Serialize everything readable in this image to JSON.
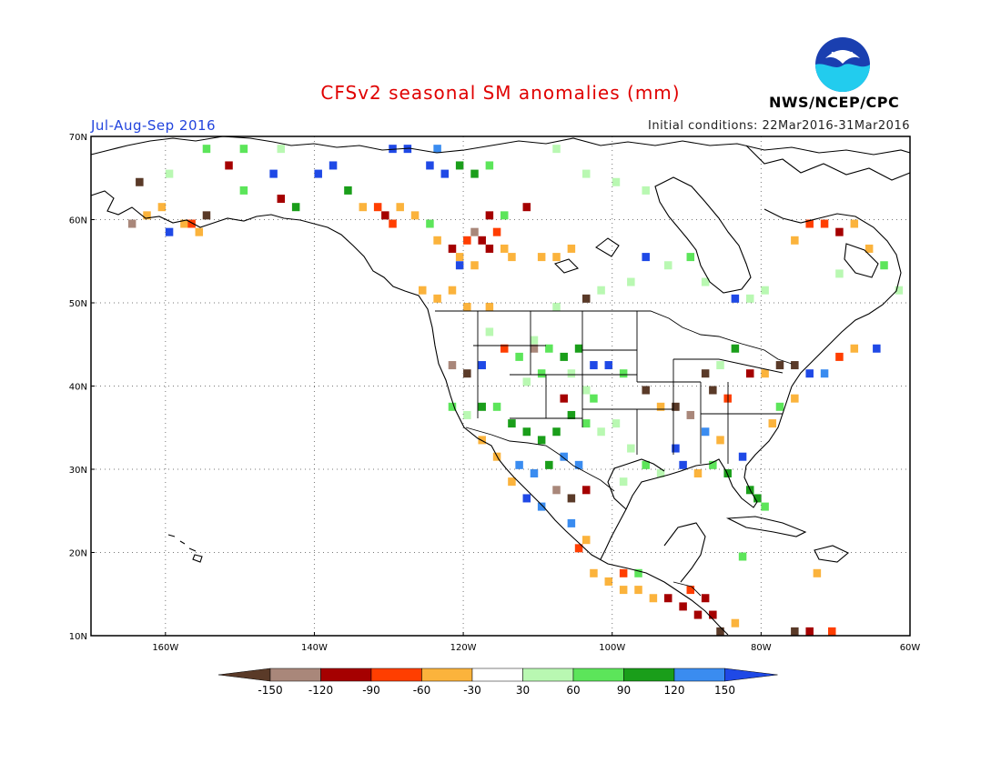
{
  "title": "CFSv2 seasonal SM anomalies (mm)",
  "period": "Jul-Aug-Sep 2016",
  "initial_conditions": "Initial conditions: 22Mar2016-31Mar2016",
  "agency": "NWS/NCEP/CPC",
  "logo_text": "NOAA",
  "lat_labels": [
    "70N",
    "60N",
    "50N",
    "40N",
    "30N",
    "20N",
    "10N"
  ],
  "lon_labels": [
    "160W",
    "140W",
    "120W",
    "100W",
    "80W",
    "60W"
  ],
  "colorbar": {
    "ticks": [
      "-150",
      "-120",
      "-90",
      "-60",
      "-30",
      "30",
      "60",
      "90",
      "120",
      "150"
    ],
    "colors": [
      "#5a3a28",
      "#a9877a",
      "#a50000",
      "#ff3e00",
      "#fbb33c",
      "#ffffff",
      "#b9f8b2",
      "#5ce55a",
      "#1a9e1a",
      "#3a8cf0",
      "#1f49e6"
    ]
  },
  "anomaly_cells": [
    {
      "lon": -163,
      "lat": 61,
      "c": "#fbb33c"
    },
    {
      "lon": -161,
      "lat": 62,
      "c": "#fbb33c"
    },
    {
      "lon": -158,
      "lat": 60,
      "c": "#fbb33c"
    },
    {
      "lon": -165,
      "lat": 60,
      "c": "#a9877a"
    },
    {
      "lon": -157,
      "lat": 60,
      "c": "#ff3e00"
    },
    {
      "lon": -156,
      "lat": 59,
      "c": "#fbb33c"
    },
    {
      "lon": -160,
      "lat": 59,
      "c": "#1f49e6"
    },
    {
      "lon": -155,
      "lat": 61,
      "c": "#5a3a28"
    },
    {
      "lon": -164,
      "lat": 65,
      "c": "#5a3a28"
    },
    {
      "lon": -160,
      "lat": 66,
      "c": "#b9f8b2"
    },
    {
      "lon": -152,
      "lat": 67,
      "c": "#a50000"
    },
    {
      "lon": -146,
      "lat": 66,
      "c": "#1f49e6"
    },
    {
      "lon": -150,
      "lat": 64,
      "c": "#5ce55a"
    },
    {
      "lon": -145,
      "lat": 63,
      "c": "#a50000"
    },
    {
      "lon": -143,
      "lat": 62,
      "c": "#1a9e1a"
    },
    {
      "lon": -140,
      "lat": 66,
      "c": "#1f49e6"
    },
    {
      "lon": -138,
      "lat": 67,
      "c": "#1f49e6"
    },
    {
      "lon": -136,
      "lat": 64,
      "c": "#1a9e1a"
    },
    {
      "lon": -134,
      "lat": 62,
      "c": "#fbb33c"
    },
    {
      "lon": -132,
      "lat": 62,
      "c": "#ff3e00"
    },
    {
      "lon": -131,
      "lat": 61,
      "c": "#a50000"
    },
    {
      "lon": -130,
      "lat": 60,
      "c": "#ff3e00"
    },
    {
      "lon": -129,
      "lat": 62,
      "c": "#fbb33c"
    },
    {
      "lon": -127,
      "lat": 61,
      "c": "#fbb33c"
    },
    {
      "lon": -125,
      "lat": 60,
      "c": "#5ce55a"
    },
    {
      "lon": -124,
      "lat": 58,
      "c": "#fbb33c"
    },
    {
      "lon": -122,
      "lat": 57,
      "c": "#a50000"
    },
    {
      "lon": -121,
      "lat": 56,
      "c": "#fbb33c"
    },
    {
      "lon": -120,
      "lat": 58,
      "c": "#ff3e00"
    },
    {
      "lon": -119,
      "lat": 59,
      "c": "#a9877a"
    },
    {
      "lon": -118,
      "lat": 58,
      "c": "#a50000"
    },
    {
      "lon": -117,
      "lat": 57,
      "c": "#a50000"
    },
    {
      "lon": -116,
      "lat": 59,
      "c": "#ff3e00"
    },
    {
      "lon": -115,
      "lat": 57,
      "c": "#fbb33c"
    },
    {
      "lon": -114,
      "lat": 56,
      "c": "#fbb33c"
    },
    {
      "lon": -119,
      "lat": 55,
      "c": "#fbb33c"
    },
    {
      "lon": -121,
      "lat": 55,
      "c": "#1f49e6"
    },
    {
      "lon": -117,
      "lat": 61,
      "c": "#a50000"
    },
    {
      "lon": -115,
      "lat": 61,
      "c": "#5ce55a"
    },
    {
      "lon": -112,
      "lat": 62,
      "c": "#a50000"
    },
    {
      "lon": -110,
      "lat": 56,
      "c": "#fbb33c"
    },
    {
      "lon": -108,
      "lat": 56,
      "c": "#fbb33c"
    },
    {
      "lon": -106,
      "lat": 57,
      "c": "#fbb33c"
    },
    {
      "lon": -126,
      "lat": 52,
      "c": "#fbb33c"
    },
    {
      "lon": -124,
      "lat": 51,
      "c": "#fbb33c"
    },
    {
      "lon": -122,
      "lat": 52,
      "c": "#fbb33c"
    },
    {
      "lon": -120,
      "lat": 50,
      "c": "#fbb33c"
    },
    {
      "lon": -117,
      "lat": 50,
      "c": "#fbb33c"
    },
    {
      "lon": -125,
      "lat": 67,
      "c": "#1f49e6"
    },
    {
      "lon": -123,
      "lat": 66,
      "c": "#1f49e6"
    },
    {
      "lon": -121,
      "lat": 67,
      "c": "#1a9e1a"
    },
    {
      "lon": -119,
      "lat": 66,
      "c": "#1a9e1a"
    },
    {
      "lon": -117,
      "lat": 67,
      "c": "#5ce55a"
    },
    {
      "lon": -130,
      "lat": 69,
      "c": "#1f49e6"
    },
    {
      "lon": -128,
      "lat": 69,
      "c": "#1f49e6"
    },
    {
      "lon": -124,
      "lat": 69,
      "c": "#3a8cf0"
    },
    {
      "lon": -155,
      "lat": 69,
      "c": "#5ce55a"
    },
    {
      "lon": -150,
      "lat": 69,
      "c": "#5ce55a"
    },
    {
      "lon": -145,
      "lat": 69,
      "c": "#b9f8b2"
    },
    {
      "lon": -108,
      "lat": 69,
      "c": "#b9f8b2"
    },
    {
      "lon": -104,
      "lat": 66,
      "c": "#b9f8b2"
    },
    {
      "lon": -100,
      "lat": 65,
      "c": "#b9f8b2"
    },
    {
      "lon": -96,
      "lat": 64,
      "c": "#b9f8b2"
    },
    {
      "lon": -96,
      "lat": 56,
      "c": "#1f49e6"
    },
    {
      "lon": -93,
      "lat": 55,
      "c": "#b9f8b2"
    },
    {
      "lon": -90,
      "lat": 56,
      "c": "#5ce55a"
    },
    {
      "lon": -88,
      "lat": 53,
      "c": "#b9f8b2"
    },
    {
      "lon": -84,
      "lat": 51,
      "c": "#1f49e6"
    },
    {
      "lon": -82,
      "lat": 51,
      "c": "#b9f8b2"
    },
    {
      "lon": -80,
      "lat": 52,
      "c": "#b9f8b2"
    },
    {
      "lon": -102,
      "lat": 52,
      "c": "#b9f8b2"
    },
    {
      "lon": -98,
      "lat": 53,
      "c": "#b9f8b2"
    },
    {
      "lon": -104,
      "lat": 51,
      "c": "#5a3a28"
    },
    {
      "lon": -108,
      "lat": 50,
      "c": "#b9f8b2"
    },
    {
      "lon": -74,
      "lat": 60,
      "c": "#ff3e00"
    },
    {
      "lon": -72,
      "lat": 60,
      "c": "#ff3e00"
    },
    {
      "lon": -70,
      "lat": 59,
      "c": "#a50000"
    },
    {
      "lon": -68,
      "lat": 60,
      "c": "#fbb33c"
    },
    {
      "lon": -66,
      "lat": 57,
      "c": "#fbb33c"
    },
    {
      "lon": -64,
      "lat": 55,
      "c": "#5ce55a"
    },
    {
      "lon": -70,
      "lat": 54,
      "c": "#b9f8b2"
    },
    {
      "lon": -62,
      "lat": 52,
      "c": "#b9f8b2"
    },
    {
      "lon": -76,
      "lat": 58,
      "c": "#fbb33c"
    },
    {
      "lon": -117,
      "lat": 47,
      "c": "#b9f8b2"
    },
    {
      "lon": -115,
      "lat": 45,
      "c": "#ff3e00"
    },
    {
      "lon": -113,
      "lat": 44,
      "c": "#5ce55a"
    },
    {
      "lon": -111,
      "lat": 46,
      "c": "#b9f8b2"
    },
    {
      "lon": -109,
      "lat": 45,
      "c": "#5ce55a"
    },
    {
      "lon": -107,
      "lat": 44,
      "c": "#1a9e1a"
    },
    {
      "lon": -105,
      "lat": 45,
      "c": "#1a9e1a"
    },
    {
      "lon": -103,
      "lat": 43,
      "c": "#1f49e6"
    },
    {
      "lon": -101,
      "lat": 43,
      "c": "#1f49e6"
    },
    {
      "lon": -99,
      "lat": 42,
      "c": "#5ce55a"
    },
    {
      "lon": -106,
      "lat": 42,
      "c": "#b9f8b2"
    },
    {
      "lon": -110,
      "lat": 42,
      "c": "#5ce55a"
    },
    {
      "lon": -112,
      "lat": 41,
      "c": "#b9f8b2"
    },
    {
      "lon": -120,
      "lat": 42,
      "c": "#5a3a28"
    },
    {
      "lon": -122,
      "lat": 43,
      "c": "#a9877a"
    },
    {
      "lon": -118,
      "lat": 43,
      "c": "#1f49e6"
    },
    {
      "lon": -111,
      "lat": 45,
      "c": "#a9877a"
    },
    {
      "lon": -122,
      "lat": 38,
      "c": "#5ce55a"
    },
    {
      "lon": -120,
      "lat": 37,
      "c": "#b9f8b2"
    },
    {
      "lon": -118,
      "lat": 38,
      "c": "#1a9e1a"
    },
    {
      "lon": -116,
      "lat": 38,
      "c": "#5ce55a"
    },
    {
      "lon": -114,
      "lat": 36,
      "c": "#1a9e1a"
    },
    {
      "lon": -112,
      "lat": 35,
      "c": "#1a9e1a"
    },
    {
      "lon": -110,
      "lat": 34,
      "c": "#1a9e1a"
    },
    {
      "lon": -108,
      "lat": 35,
      "c": "#1a9e1a"
    },
    {
      "lon": -106,
      "lat": 37,
      "c": "#1a9e1a"
    },
    {
      "lon": -104,
      "lat": 36,
      "c": "#5ce55a"
    },
    {
      "lon": -107,
      "lat": 32,
      "c": "#3a8cf0"
    },
    {
      "lon": -105,
      "lat": 31,
      "c": "#3a8cf0"
    },
    {
      "lon": -109,
      "lat": 31,
      "c": "#1a9e1a"
    },
    {
      "lon": -111,
      "lat": 30,
      "c": "#3a8cf0"
    },
    {
      "lon": -113,
      "lat": 31,
      "c": "#3a8cf0"
    },
    {
      "lon": -108,
      "lat": 28,
      "c": "#a9877a"
    },
    {
      "lon": -106,
      "lat": 27,
      "c": "#5a3a28"
    },
    {
      "lon": -104,
      "lat": 28,
      "c": "#a50000"
    },
    {
      "lon": -106,
      "lat": 24,
      "c": "#3a8cf0"
    },
    {
      "lon": -104,
      "lat": 22,
      "c": "#fbb33c"
    },
    {
      "lon": -112,
      "lat": 27,
      "c": "#1f49e6"
    },
    {
      "lon": -110,
      "lat": 26,
      "c": "#3a8cf0"
    },
    {
      "lon": -118,
      "lat": 34,
      "c": "#fbb33c"
    },
    {
      "lon": -116,
      "lat": 32,
      "c": "#fbb33c"
    },
    {
      "lon": -114,
      "lat": 29,
      "c": "#fbb33c"
    },
    {
      "lon": -102,
      "lat": 35,
      "c": "#b9f8b2"
    },
    {
      "lon": -103,
      "lat": 39,
      "c": "#5ce55a"
    },
    {
      "lon": -107,
      "lat": 39,
      "c": "#a50000"
    },
    {
      "lon": -104,
      "lat": 40,
      "c": "#b9f8b2"
    },
    {
      "lon": -96,
      "lat": 40,
      "c": "#5a3a28"
    },
    {
      "lon": -94,
      "lat": 38,
      "c": "#fbb33c"
    },
    {
      "lon": -92,
      "lat": 38,
      "c": "#5a3a28"
    },
    {
      "lon": -90,
      "lat": 37,
      "c": "#a9877a"
    },
    {
      "lon": -88,
      "lat": 35,
      "c": "#3a8cf0"
    },
    {
      "lon": -86,
      "lat": 34,
      "c": "#fbb33c"
    },
    {
      "lon": -92,
      "lat": 33,
      "c": "#1f49e6"
    },
    {
      "lon": -91,
      "lat": 31,
      "c": "#1f49e6"
    },
    {
      "lon": -89,
      "lat": 30,
      "c": "#fbb33c"
    },
    {
      "lon": -87,
      "lat": 31,
      "c": "#5ce55a"
    },
    {
      "lon": -85,
      "lat": 30,
      "c": "#1a9e1a"
    },
    {
      "lon": -83,
      "lat": 32,
      "c": "#1f49e6"
    },
    {
      "lon": -82,
      "lat": 28,
      "c": "#1a9e1a"
    },
    {
      "lon": -81,
      "lat": 27,
      "c": "#1a9e1a"
    },
    {
      "lon": -80,
      "lat": 26,
      "c": "#5ce55a"
    },
    {
      "lon": -98,
      "lat": 33,
      "c": "#b9f8b2"
    },
    {
      "lon": -96,
      "lat": 31,
      "c": "#5ce55a"
    },
    {
      "lon": -94,
      "lat": 30,
      "c": "#b9f8b2"
    },
    {
      "lon": -99,
      "lat": 29,
      "c": "#b9f8b2"
    },
    {
      "lon": -100,
      "lat": 36,
      "c": "#b9f8b2"
    },
    {
      "lon": -88,
      "lat": 42,
      "c": "#5a3a28"
    },
    {
      "lon": -86,
      "lat": 43,
      "c": "#b9f8b2"
    },
    {
      "lon": -82,
      "lat": 42,
      "c": "#a50000"
    },
    {
      "lon": -80,
      "lat": 42,
      "c": "#fbb33c"
    },
    {
      "lon": -78,
      "lat": 43,
      "c": "#5a3a28"
    },
    {
      "lon": -76,
      "lat": 43,
      "c": "#5a3a28"
    },
    {
      "lon": -74,
      "lat": 42,
      "c": "#1f49e6"
    },
    {
      "lon": -72,
      "lat": 42,
      "c": "#3a8cf0"
    },
    {
      "lon": -70,
      "lat": 44,
      "c": "#ff3e00"
    },
    {
      "lon": -68,
      "lat": 45,
      "c": "#fbb33c"
    },
    {
      "lon": -65,
      "lat": 45,
      "c": "#1f49e6"
    },
    {
      "lon": -76,
      "lat": 39,
      "c": "#fbb33c"
    },
    {
      "lon": -78,
      "lat": 38,
      "c": "#5ce55a"
    },
    {
      "lon": -79,
      "lat": 36,
      "c": "#fbb33c"
    },
    {
      "lon": -84,
      "lat": 45,
      "c": "#1a9e1a"
    },
    {
      "lon": -87,
      "lat": 40,
      "c": "#5a3a28"
    },
    {
      "lon": -85,
      "lat": 39,
      "c": "#ff3e00"
    },
    {
      "lon": -105,
      "lat": 21,
      "c": "#ff3e00"
    },
    {
      "lon": -103,
      "lat": 18,
      "c": "#fbb33c"
    },
    {
      "lon": -101,
      "lat": 17,
      "c": "#fbb33c"
    },
    {
      "lon": -99,
      "lat": 16,
      "c": "#fbb33c"
    },
    {
      "lon": -97,
      "lat": 16,
      "c": "#fbb33c"
    },
    {
      "lon": -95,
      "lat": 15,
      "c": "#fbb33c"
    },
    {
      "lon": -93,
      "lat": 15,
      "c": "#a50000"
    },
    {
      "lon": -91,
      "lat": 14,
      "c": "#a50000"
    },
    {
      "lon": -89,
      "lat": 13,
      "c": "#a50000"
    },
    {
      "lon": -87,
      "lat": 13,
      "c": "#a50000"
    },
    {
      "lon": -86,
      "lat": 11,
      "c": "#5a3a28"
    },
    {
      "lon": -84,
      "lat": 12,
      "c": "#fbb33c"
    },
    {
      "lon": -88,
      "lat": 15,
      "c": "#a50000"
    },
    {
      "lon": -90,
      "lat": 16,
      "c": "#ff3e00"
    },
    {
      "lon": -99,
      "lat": 18,
      "c": "#ff3e00"
    },
    {
      "lon": -97,
      "lat": 18,
      "c": "#5ce55a"
    },
    {
      "lon": -83,
      "lat": 20,
      "c": "#5ce55a"
    },
    {
      "lon": -73,
      "lat": 18,
      "c": "#fbb33c"
    },
    {
      "lon": -71,
      "lat": 11,
      "c": "#ff3e00"
    },
    {
      "lon": -74,
      "lat": 11,
      "c": "#a50000"
    },
    {
      "lon": -76,
      "lat": 11,
      "c": "#5a3a28"
    }
  ]
}
